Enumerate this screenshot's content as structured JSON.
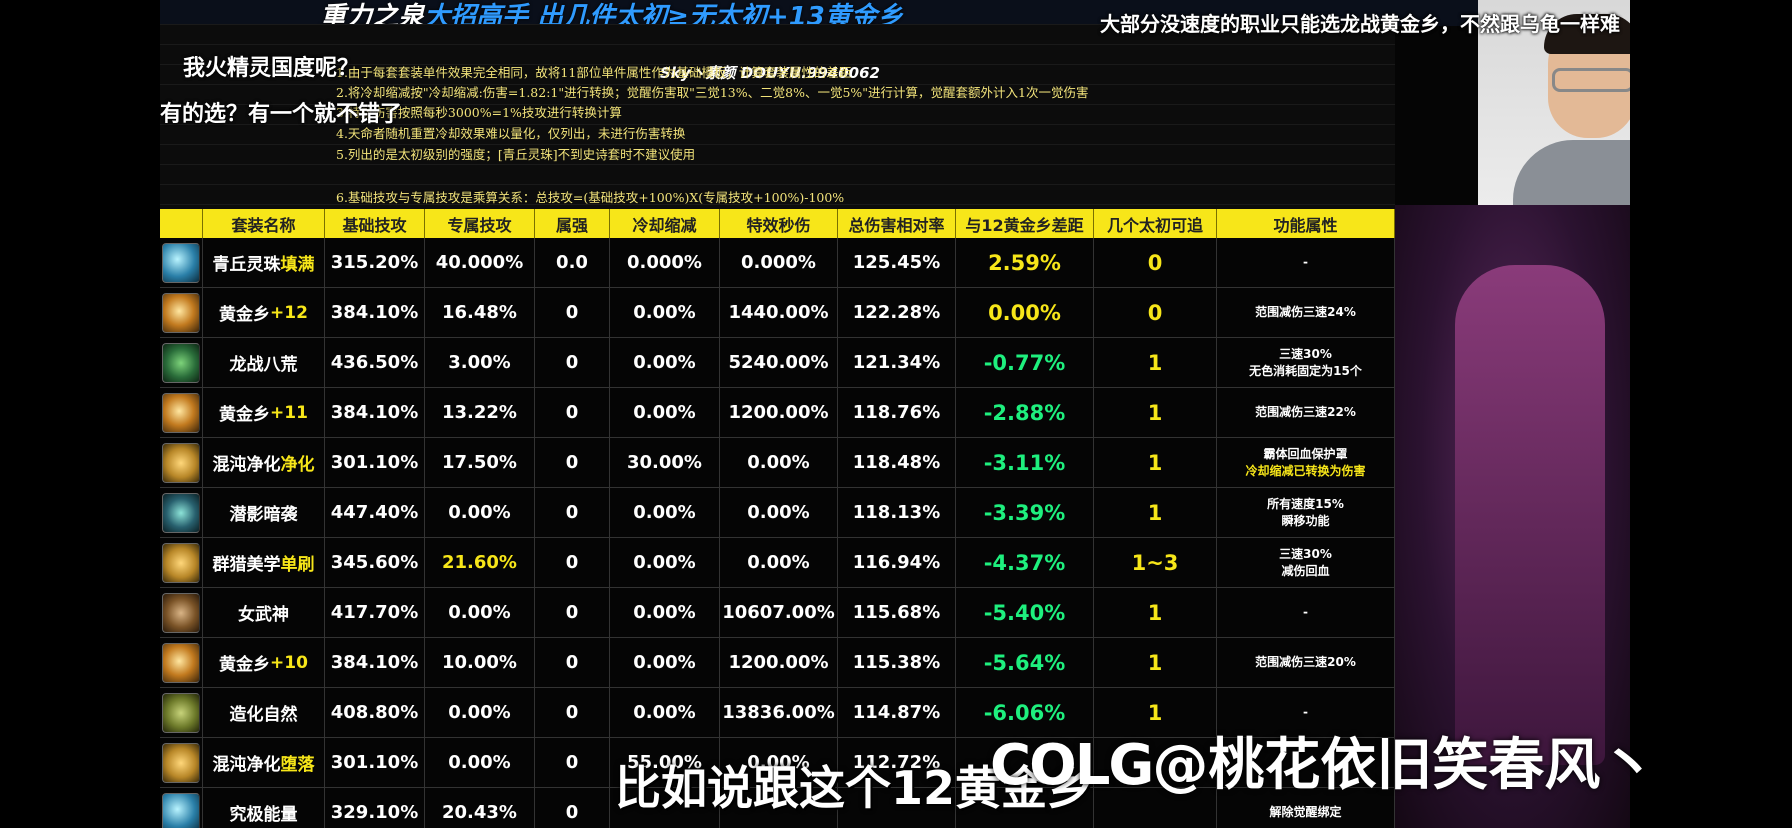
{
  "banner": {
    "title_part1": "重力之泉",
    "title_part2": "大招高手",
    "title_part3": "出几件太初≥无太初+13黄金乡",
    "source": "Sky丶素颜 DOUYU.9940062"
  },
  "chat_overlay": {
    "line1": "我火精灵国度呢？",
    "line2": "有的选？有一个就不错了",
    "line3": "大部分没速度的职业只能选龙战黄金乡，不然跟乌龟一样难"
  },
  "notes": [
    "1.由于每套套装单件效果完全相同，故将11部位单件属性作为基础模板，计算套装属性的差距",
    "2.将冷却缩减按\"冷却缩减:伤害=1.82:1\"进行转换；觉醒伤害取\"三觉13%、二觉8%、一觉5%\"进行计算，觉醒套额外计入1次一觉伤害",
    "3.特效伤害按照每秒3000%=1%技攻进行转换计算",
    "4.天命者随机重置冷却效果难以量化，仅列出，未进行伤害转换",
    "5.列出的是太初级别的强度；[青丘灵珠]不到史诗套时不建议使用",
    "6.基础技攻与专属技攻是乘算关系：总技攻=(基础技攻+100%)X(专属技攻+100%)-100%"
  ],
  "table": {
    "headers": [
      "套装名称",
      "基础技攻",
      "专属技攻",
      "属强",
      "冷却缩减",
      "特效秒伤",
      "总伤害相对率",
      "与12黄金乡差距",
      "几个太初可追",
      "功能属性"
    ],
    "rows": [
      {
        "icon": "blue",
        "name": "青丘灵珠",
        "name_hl": "填满",
        "base": "315.20%",
        "excl": "40.000%",
        "elem": "0.0",
        "cd": "0.000%",
        "dps": "0.000%",
        "total": "125.45%",
        "gap": "2.59%",
        "gold": true,
        "chase": "0",
        "func1": "-",
        "func2": ""
      },
      {
        "icon": "gold",
        "name": "黄金乡",
        "name_hl": "+12",
        "base": "384.10%",
        "excl": "16.48%",
        "elem": "0",
        "cd": "0.00%",
        "dps": "1440.00%",
        "total": "122.28%",
        "gap": "0.00%",
        "gold": true,
        "chase": "0",
        "func1": "范围减伤三速24%",
        "func2": ""
      },
      {
        "icon": "green",
        "name": "龙战八荒",
        "name_hl": "",
        "base": "436.50%",
        "excl": "3.00%",
        "elem": "0",
        "cd": "0.00%",
        "dps": "5240.00%",
        "total": "121.34%",
        "gap": "-0.77%",
        "gold": false,
        "chase": "1",
        "func1": "三速30%",
        "func2": "无色消耗固定为15个"
      },
      {
        "icon": "gold",
        "name": "黄金乡",
        "name_hl": "+11",
        "base": "384.10%",
        "excl": "13.22%",
        "elem": "0",
        "cd": "0.00%",
        "dps": "1200.00%",
        "total": "118.76%",
        "gap": "-2.88%",
        "gold": false,
        "chase": "1",
        "func1": "范围减伤三速22%",
        "func2": ""
      },
      {
        "icon": "leaf",
        "name": "混沌净化",
        "name_hl": "净化",
        "base": "301.10%",
        "excl": "17.50%",
        "elem": "0",
        "cd": "30.00%",
        "dps": "0.00%",
        "total": "118.48%",
        "gap": "-3.11%",
        "gold": false,
        "chase": "1",
        "func1": "霸体回血保护罩",
        "func2": "冷却缩减已转换为伤害",
        "func2_hl": true
      },
      {
        "icon": "teal",
        "name": "潜影暗袭",
        "name_hl": "",
        "base": "447.40%",
        "excl": "0.00%",
        "elem": "0",
        "cd": "0.00%",
        "dps": "0.00%",
        "total": "118.13%",
        "gap": "-3.39%",
        "gold": false,
        "chase": "1",
        "func1": "所有速度15%",
        "func2": "瞬移功能"
      },
      {
        "icon": "leaf",
        "name": "群猎美学",
        "name_hl": "单刷",
        "base": "345.60%",
        "excl": "21.60%",
        "excl_hl": true,
        "elem": "0",
        "cd": "0.00%",
        "dps": "0.00%",
        "total": "116.94%",
        "gap": "-4.37%",
        "gold": false,
        "chase": "1~3",
        "func1": "三速30%",
        "func2": "减伤回血"
      },
      {
        "icon": "brown",
        "name": "女武神",
        "name_hl": "",
        "base": "417.70%",
        "excl": "0.00%",
        "elem": "0",
        "cd": "0.00%",
        "dps": "10607.00%",
        "total": "115.68%",
        "gap": "-5.40%",
        "gold": false,
        "chase": "1",
        "func1": "-",
        "func2": ""
      },
      {
        "icon": "gold",
        "name": "黄金乡",
        "name_hl": "+10",
        "base": "384.10%",
        "excl": "10.00%",
        "elem": "0",
        "cd": "0.00%",
        "dps": "1200.00%",
        "total": "115.38%",
        "gap": "-5.64%",
        "gold": false,
        "chase": "1",
        "func1": "范围减伤三速20%",
        "func2": ""
      },
      {
        "icon": "olive",
        "name": "造化自然",
        "name_hl": "",
        "base": "408.80%",
        "excl": "0.00%",
        "elem": "0",
        "cd": "0.00%",
        "dps": "13836.00%",
        "total": "114.87%",
        "gap": "-6.06%",
        "gold": false,
        "chase": "1",
        "func1": "-",
        "func2": ""
      },
      {
        "icon": "leaf",
        "name": "混沌净化",
        "name_hl": "堕落",
        "base": "301.10%",
        "excl": "0.00%",
        "elem": "0",
        "cd": "55.00%",
        "dps": "0.00%",
        "total": "112.72%",
        "gap": "",
        "gold": false,
        "chase": "",
        "func1": "",
        "func2": ""
      },
      {
        "icon": "blue",
        "name": "究极能量",
        "name_hl": "",
        "base": "329.10%",
        "excl": "20.43%",
        "elem": "0",
        "cd": "",
        "dps": "",
        "total": "",
        "gap": "",
        "gold": false,
        "chase": "",
        "func1": "解除觉醒绑定",
        "func2": ""
      }
    ]
  },
  "subtitle": "比如说跟这个12黄金乡",
  "watermark": {
    "logo": "COLG",
    "handle": "@桃花依旧笑春风丶"
  }
}
